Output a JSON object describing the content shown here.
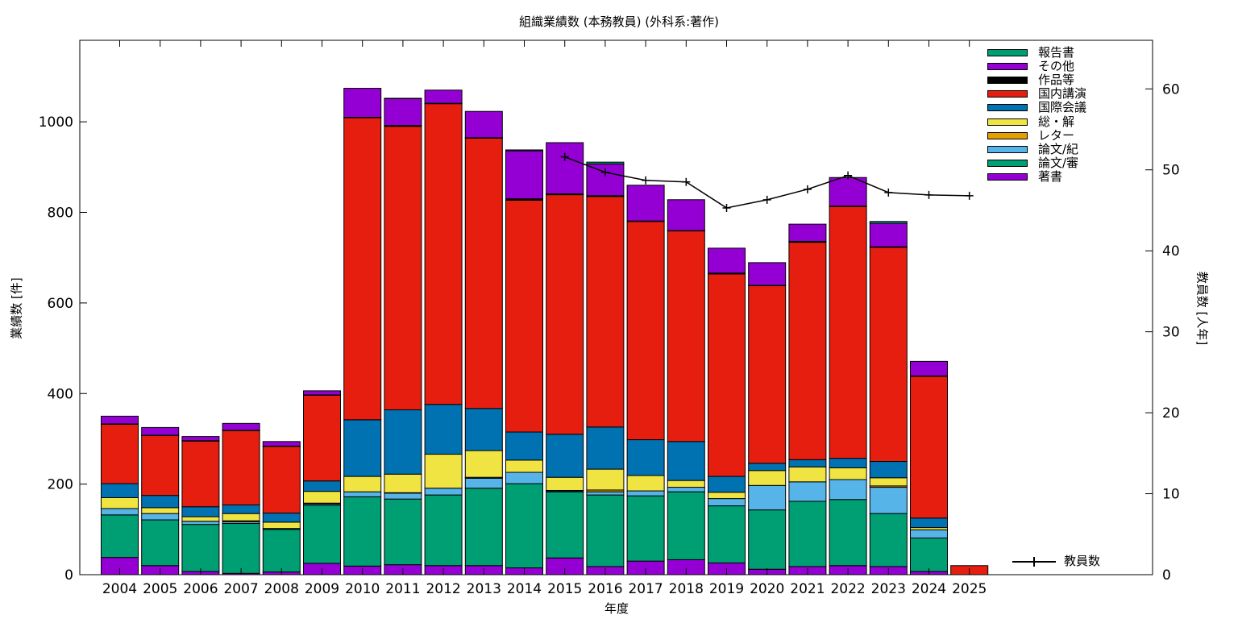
{
  "chart_data": {
    "type": "bar",
    "stacked": true,
    "title": "組織業績数 (本務教員) (外科系:著作)",
    "xlabel": "年度",
    "ylabel": "業績数 [件]",
    "y2label": "教員数 [人年]",
    "ylim": [
      0,
      1180
    ],
    "y2lim": [
      0,
      66
    ],
    "yticks": [
      0,
      200,
      400,
      600,
      800,
      1000
    ],
    "y2ticks": [
      0,
      10,
      20,
      30,
      40,
      50,
      60
    ],
    "legend_position": "top-right",
    "categories": [
      "2004",
      "2005",
      "2006",
      "2007",
      "2008",
      "2009",
      "2010",
      "2011",
      "2012",
      "2013",
      "2014",
      "2015",
      "2016",
      "2017",
      "2018",
      "2019",
      "2020",
      "2021",
      "2022",
      "2023",
      "2024",
      "2025"
    ],
    "series": [
      {
        "name": "著書",
        "color": "#9400d3",
        "values": [
          38,
          20,
          7,
          3,
          6,
          25,
          19,
          22,
          20,
          20,
          15,
          37,
          18,
          30,
          33,
          26,
          12,
          18,
          20,
          18,
          7,
          0
        ]
      },
      {
        "name": "論文/審",
        "color": "#009e73",
        "values": [
          94,
          101,
          104,
          110,
          94,
          128,
          153,
          145,
          156,
          171,
          186,
          146,
          158,
          144,
          150,
          126,
          131,
          144,
          146,
          117,
          74,
          0
        ]
      },
      {
        "name": "論文/紀",
        "color": "#56b4e9",
        "values": [
          14,
          14,
          7,
          4,
          2,
          3,
          11,
          13,
          15,
          22,
          25,
          2,
          7,
          11,
          10,
          16,
          54,
          43,
          44,
          58,
          18,
          0
        ]
      },
      {
        "name": "レター",
        "color": "#e69f00",
        "values": [
          0,
          0,
          0,
          2,
          0,
          2,
          0,
          1,
          0,
          2,
          0,
          1,
          4,
          0,
          0,
          0,
          0,
          0,
          0,
          3,
          0,
          0
        ]
      },
      {
        "name": "総・解",
        "color": "#f0e442",
        "values": [
          24,
          13,
          10,
          16,
          14,
          26,
          34,
          41,
          75,
          59,
          27,
          29,
          46,
          34,
          15,
          14,
          33,
          33,
          26,
          18,
          5,
          0
        ]
      },
      {
        "name": "国際会議",
        "color": "#0072b2",
        "values": [
          31,
          27,
          22,
          19,
          20,
          23,
          125,
          142,
          110,
          93,
          62,
          95,
          93,
          79,
          86,
          35,
          16,
          16,
          21,
          36,
          21,
          0
        ]
      },
      {
        "name": "国内講演",
        "color": "#e51e10",
        "values": [
          131,
          132,
          145,
          164,
          147,
          189,
          667,
          626,
          664,
          597,
          512,
          529,
          509,
          482,
          465,
          447,
          392,
          480,
          556,
          473,
          313,
          20
        ]
      },
      {
        "name": "作品等",
        "color": "#000000",
        "values": [
          1,
          1,
          1,
          1,
          1,
          1,
          1,
          2,
          1,
          1,
          3,
          2,
          2,
          1,
          1,
          2,
          1,
          2,
          1,
          1,
          1,
          0
        ]
      },
      {
        "name": "その他",
        "color": "#9400d3",
        "values": [
          17,
          17,
          9,
          15,
          10,
          9,
          64,
          59,
          29,
          58,
          106,
          113,
          70,
          79,
          68,
          55,
          50,
          38,
          63,
          52,
          32,
          0
        ]
      },
      {
        "name": "報告書",
        "color": "#009e73",
        "values": [
          0,
          0,
          0,
          0,
          0,
          0,
          0,
          1,
          0,
          0,
          2,
          0,
          4,
          0,
          0,
          0,
          0,
          0,
          0,
          4,
          0,
          0
        ]
      }
    ],
    "line_series": {
      "name": "教員数",
      "axis": "y2",
      "x": [
        "2015",
        "2016",
        "2017",
        "2018",
        "2019",
        "2020",
        "2021",
        "2022",
        "2023",
        "2024",
        "2025"
      ],
      "values": [
        51.6,
        49.7,
        48.7,
        48.5,
        45.3,
        46.3,
        47.6,
        49.3,
        47.2,
        46.9,
        46.8
      ]
    }
  }
}
